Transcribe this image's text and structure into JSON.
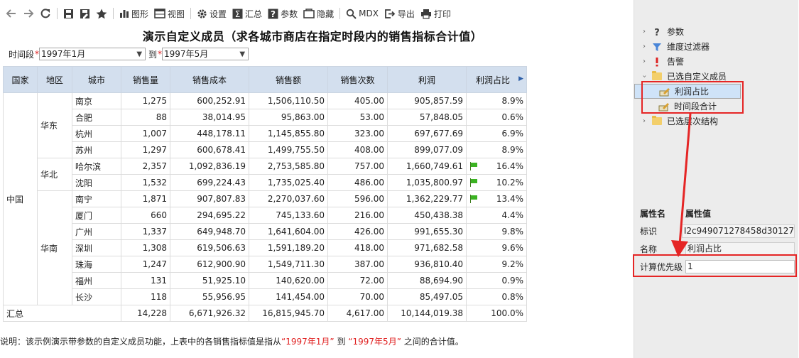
{
  "toolbar": {
    "back": "back-arrow",
    "forward": "forward-arrow",
    "refresh": "refresh",
    "save": "save",
    "save_as": "save-as",
    "favorite": "star",
    "chart_label": "图形",
    "view_label": "视图",
    "settings_label": "设置",
    "summary_label": "汇总",
    "params_label": "参数",
    "hide_label": "隐藏",
    "mdx_label": "MDX",
    "export_label": "导出",
    "print_label": "打印"
  },
  "report": {
    "title": "演示自定义成员（求各城市商店在指定时段内的销售指标合计值）",
    "param_period_label": "时间段",
    "param_start": "1997年1月",
    "param_to_label": "到",
    "param_end": "1997年5月"
  },
  "table": {
    "headers": [
      "国家",
      "地区",
      "城市",
      "销售量",
      "销售成本",
      "销售额",
      "销售次数",
      "利润",
      "利润占比"
    ],
    "country": "中国",
    "regions": [
      "华东",
      "华北",
      "华南"
    ],
    "rows": [
      {
        "city": "南京",
        "qty": "1,275",
        "cost": "600,252.91",
        "sales": "1,506,110.50",
        "count": "405.00",
        "profit": "905,857.59",
        "ratio": "8.9%",
        "flag": false
      },
      {
        "city": "合肥",
        "qty": "88",
        "cost": "38,014.95",
        "sales": "95,863.00",
        "count": "53.00",
        "profit": "57,848.05",
        "ratio": "0.6%",
        "flag": false
      },
      {
        "city": "杭州",
        "qty": "1,007",
        "cost": "448,178.11",
        "sales": "1,145,855.80",
        "count": "323.00",
        "profit": "697,677.69",
        "ratio": "6.9%",
        "flag": false
      },
      {
        "city": "苏州",
        "qty": "1,297",
        "cost": "600,678.41",
        "sales": "1,499,755.50",
        "count": "408.00",
        "profit": "899,077.09",
        "ratio": "8.9%",
        "flag": false
      },
      {
        "city": "哈尔滨",
        "qty": "2,357",
        "cost": "1,092,836.19",
        "sales": "2,753,585.80",
        "count": "757.00",
        "profit": "1,660,749.61",
        "ratio": "16.4%",
        "flag": true
      },
      {
        "city": "沈阳",
        "qty": "1,532",
        "cost": "699,224.43",
        "sales": "1,735,025.40",
        "count": "486.00",
        "profit": "1,035,800.97",
        "ratio": "10.2%",
        "flag": true
      },
      {
        "city": "南宁",
        "qty": "1,871",
        "cost": "907,807.83",
        "sales": "2,270,037.60",
        "count": "596.00",
        "profit": "1,362,229.77",
        "ratio": "13.4%",
        "flag": true
      },
      {
        "city": "厦门",
        "qty": "660",
        "cost": "294,695.22",
        "sales": "745,133.60",
        "count": "216.00",
        "profit": "450,438.38",
        "ratio": "4.4%",
        "flag": false
      },
      {
        "city": "广州",
        "qty": "1,337",
        "cost": "649,948.70",
        "sales": "1,641,604.00",
        "count": "426.00",
        "profit": "991,655.30",
        "ratio": "9.8%",
        "flag": false
      },
      {
        "city": "深圳",
        "qty": "1,308",
        "cost": "619,506.63",
        "sales": "1,591,189.20",
        "count": "418.00",
        "profit": "971,682.58",
        "ratio": "9.6%",
        "flag": false
      },
      {
        "city": "珠海",
        "qty": "1,247",
        "cost": "612,900.90",
        "sales": "1,549,711.30",
        "count": "387.00",
        "profit": "936,810.40",
        "ratio": "9.2%",
        "flag": false
      },
      {
        "city": "福州",
        "qty": "131",
        "cost": "51,925.10",
        "sales": "140,620.00",
        "count": "72.00",
        "profit": "88,694.90",
        "ratio": "0.9%",
        "flag": false
      },
      {
        "city": "长沙",
        "qty": "118",
        "cost": "55,956.95",
        "sales": "141,454.00",
        "count": "70.00",
        "profit": "85,497.05",
        "ratio": "0.8%",
        "flag": false
      }
    ],
    "total": {
      "label": "汇总",
      "qty": "14,228",
      "cost": "6,671,926.32",
      "sales": "16,815,945.70",
      "count": "4,617.00",
      "profit": "10,144,019.38",
      "ratio": "100.0%"
    }
  },
  "note": {
    "prefix": "说明：该示例演示带参数的自定义成员功能，上表中的各销售指标值是指从",
    "start": "“1997年1月”",
    "mid": "到",
    "end": "“1997年5月”",
    "suffix": "之间的合计值。"
  },
  "panel": {
    "tree": {
      "params": "参数",
      "dim_filter": "维度过滤器",
      "alert": "告警",
      "custom_members": "已选自定义成员",
      "member_profit_ratio": "利润占比",
      "member_period_total": "时间段合计",
      "hierarchy": "已选层次结构"
    },
    "props": {
      "header_name": "属性名",
      "header_value": "属性值",
      "id_label": "标识",
      "id_value": "I2c949071278458d30127",
      "name_label": "名称",
      "name_value": "利润占比",
      "priority_label": "计算优先级",
      "priority_value": "1"
    }
  },
  "colors": {
    "header_bg": "#d3dfee",
    "highlight_red": "#e52525",
    "flag_green": "#3bb322",
    "selected_bg": "#cfe3f8"
  }
}
